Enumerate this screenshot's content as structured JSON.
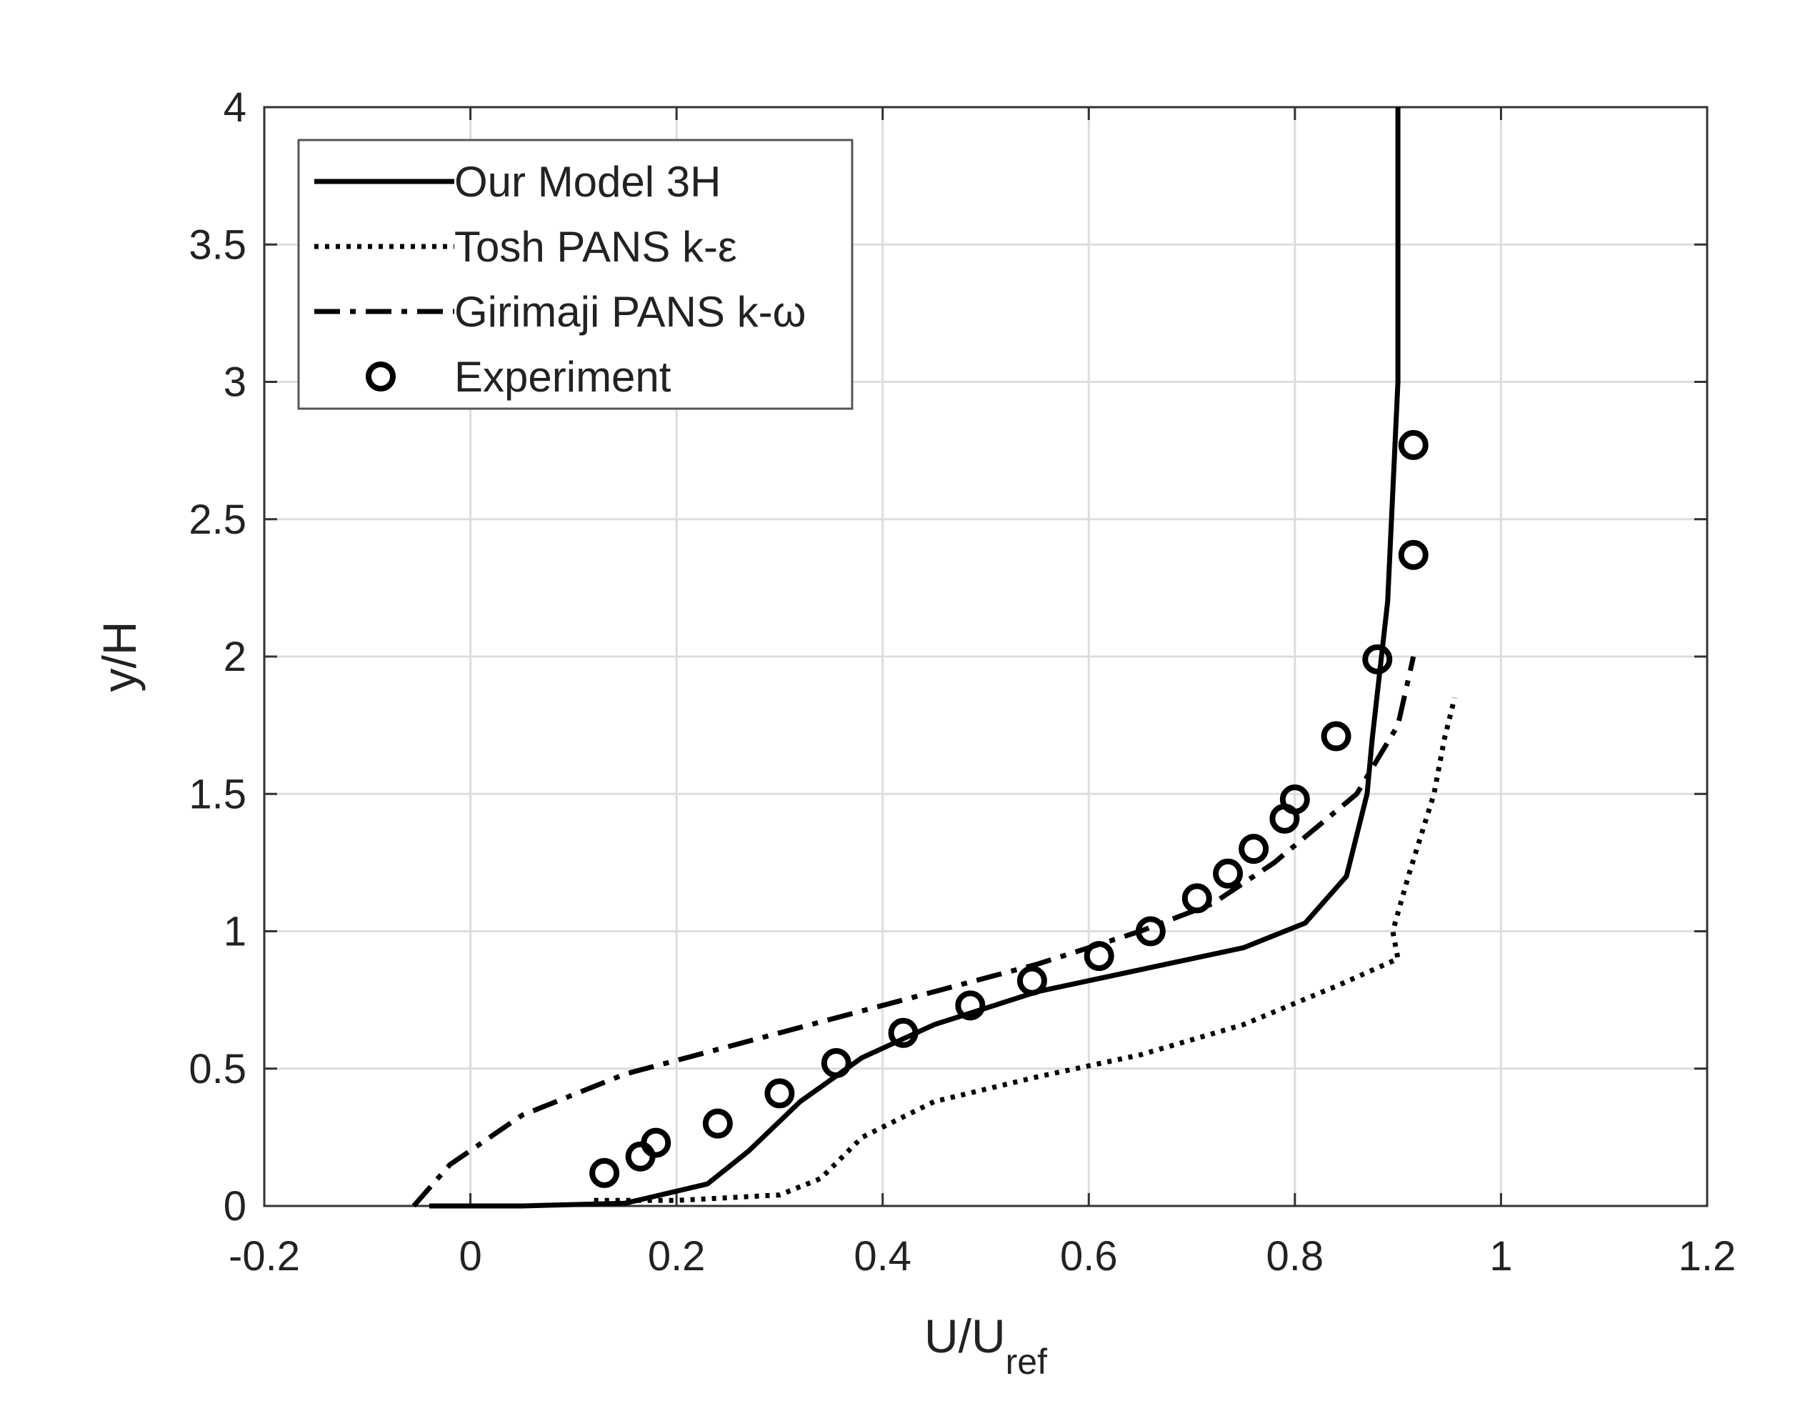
{
  "chart_data": {
    "type": "line",
    "xlabel": "U/U",
    "xlabel_subscript": "ref",
    "ylabel": "y/H",
    "xlim": [
      -0.2,
      1.2
    ],
    "ylim": [
      0,
      4
    ],
    "xticks": [
      -0.2,
      0,
      0.2,
      0.4,
      0.6,
      0.8,
      1,
      1.2
    ],
    "yticks": [
      0,
      0.5,
      1,
      1.5,
      2,
      2.5,
      3,
      3.5,
      4
    ],
    "xtick_labels": [
      "-0.2",
      "0",
      "0.2",
      "0.4",
      "0.6",
      "0.8",
      "1",
      "1.2"
    ],
    "ytick_labels": [
      "0",
      "0.5",
      "1",
      "1.5",
      "2",
      "2.5",
      "3",
      "3.5",
      "4"
    ],
    "grid": true,
    "legend_position": "top-left",
    "series": [
      {
        "name": "Our Model 3H",
        "style": "solid",
        "color": "#000000",
        "points": [
          [
            -0.04,
            0.0
          ],
          [
            0.05,
            0.0
          ],
          [
            0.15,
            0.01
          ],
          [
            0.23,
            0.08
          ],
          [
            0.27,
            0.2
          ],
          [
            0.32,
            0.38
          ],
          [
            0.38,
            0.54
          ],
          [
            0.45,
            0.66
          ],
          [
            0.55,
            0.78
          ],
          [
            0.65,
            0.86
          ],
          [
            0.75,
            0.94
          ],
          [
            0.81,
            1.03
          ],
          [
            0.85,
            1.2
          ],
          [
            0.87,
            1.5
          ],
          [
            0.875,
            1.7
          ],
          [
            0.89,
            2.2
          ],
          [
            0.9,
            3.0
          ],
          [
            0.9,
            4.0
          ]
        ]
      },
      {
        "name": "Tosh PANS k-ε",
        "style": "dotted",
        "color": "#000000",
        "points": [
          [
            0.12,
            0.02
          ],
          [
            0.2,
            0.02
          ],
          [
            0.3,
            0.04
          ],
          [
            0.34,
            0.1
          ],
          [
            0.38,
            0.25
          ],
          [
            0.45,
            0.38
          ],
          [
            0.55,
            0.47
          ],
          [
            0.65,
            0.55
          ],
          [
            0.75,
            0.66
          ],
          [
            0.84,
            0.8
          ],
          [
            0.9,
            0.9
          ],
          [
            0.895,
            1.0
          ],
          [
            0.91,
            1.2
          ],
          [
            0.935,
            1.5
          ],
          [
            0.945,
            1.7
          ],
          [
            0.955,
            1.85
          ]
        ]
      },
      {
        "name": "Girimaji PANS k-ω",
        "style": "dashdot",
        "color": "#000000",
        "points": [
          [
            -0.055,
            0.0
          ],
          [
            -0.02,
            0.15
          ],
          [
            0.05,
            0.33
          ],
          [
            0.15,
            0.48
          ],
          [
            0.25,
            0.58
          ],
          [
            0.35,
            0.68
          ],
          [
            0.45,
            0.78
          ],
          [
            0.55,
            0.88
          ],
          [
            0.65,
            1.0
          ],
          [
            0.72,
            1.1
          ],
          [
            0.78,
            1.25
          ],
          [
            0.86,
            1.5
          ],
          [
            0.9,
            1.75
          ],
          [
            0.915,
            2.0
          ]
        ]
      },
      {
        "name": "Experiment",
        "style": "markers",
        "color": "#000000",
        "points": [
          [
            0.13,
            0.12
          ],
          [
            0.165,
            0.18
          ],
          [
            0.18,
            0.23
          ],
          [
            0.24,
            0.3
          ],
          [
            0.3,
            0.41
          ],
          [
            0.355,
            0.52
          ],
          [
            0.42,
            0.63
          ],
          [
            0.485,
            0.73
          ],
          [
            0.545,
            0.82
          ],
          [
            0.61,
            0.91
          ],
          [
            0.66,
            1.0
          ],
          [
            0.705,
            1.12
          ],
          [
            0.735,
            1.21
          ],
          [
            0.76,
            1.3
          ],
          [
            0.79,
            1.41
          ],
          [
            0.8,
            1.48
          ],
          [
            0.84,
            1.71
          ],
          [
            0.88,
            1.99
          ],
          [
            0.915,
            2.37
          ],
          [
            0.915,
            2.77
          ]
        ]
      }
    ]
  }
}
